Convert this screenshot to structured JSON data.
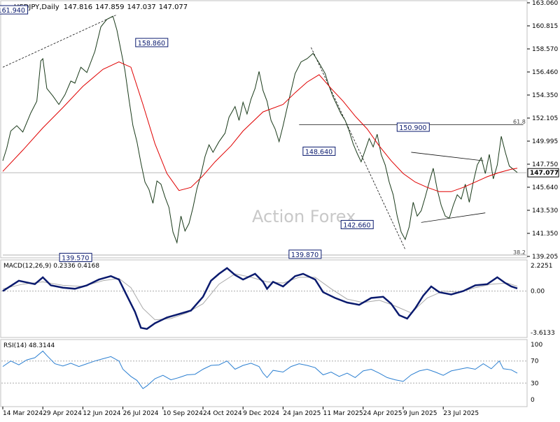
{
  "chart_data": {
    "type": "line",
    "title": "USDJPY,Daily",
    "ohlc": {
      "open": "147.816",
      "high": "147.859",
      "low": "147.037",
      "close": "147.077"
    },
    "watermark": "Action Forex",
    "colors": {
      "price": "#1a3a1a",
      "ma": "#e00000",
      "macd": "#0a1a6e",
      "signal": "#aaaaaa",
      "rsi": "#2b7fd1",
      "annotation_box": "#0a1a6e"
    },
    "x_ticks": [
      "14 Mar 2024",
      "29 Apr 2024",
      "12 Jun 2024",
      "26 Jul 2024",
      "10 Sep 2024",
      "24 Oct 2024",
      "9 Dec 2024",
      "24 Jan 2025",
      "11 Mar 2025",
      "24 Apr 2025",
      "9 Jun 2025",
      "23 Jul 2025"
    ],
    "price_panel": {
      "ylim": [
        139.205,
        163.06
      ],
      "y_ticks": [
        "163.060",
        "160.815",
        "158.570",
        "156.460",
        "154.350",
        "152.105",
        "149.995",
        "147.750",
        "145.640",
        "143.530",
        "141.350",
        "139.205"
      ],
      "current_price": "147.077",
      "fib_labels": [
        {
          "label": "61.8",
          "value": 151.5
        },
        {
          "label": "38.2",
          "value": 139.205
        }
      ],
      "annotations": [
        {
          "label": "161.940",
          "x": 0.22,
          "value": 161.94
        },
        {
          "label": "139.570",
          "x": 1.82,
          "value": 139.57
        },
        {
          "label": "158.860",
          "x": 3.72,
          "value": 158.86
        },
        {
          "label": "139.870",
          "x": 7.55,
          "value": 139.87
        },
        {
          "label": "148.640",
          "x": 7.9,
          "value": 148.64
        },
        {
          "label": "142.660",
          "x": 8.85,
          "value": 142.66
        },
        {
          "label": "150.900",
          "x": 10.25,
          "value": 150.9
        }
      ],
      "price_series": [
        [
          0,
          148.2
        ],
        [
          0.1,
          149.4
        ],
        [
          0.2,
          151.0
        ],
        [
          0.35,
          151.5
        ],
        [
          0.5,
          150.9
        ],
        [
          0.7,
          152.7
        ],
        [
          0.85,
          153.8
        ],
        [
          0.95,
          157.6
        ],
        [
          1.0,
          157.8
        ],
        [
          1.1,
          155.0
        ],
        [
          1.25,
          154.3
        ],
        [
          1.4,
          153.5
        ],
        [
          1.55,
          154.4
        ],
        [
          1.7,
          155.7
        ],
        [
          1.8,
          155.5
        ],
        [
          1.95,
          157.0
        ],
        [
          2.1,
          156.5
        ],
        [
          2.3,
          158.5
        ],
        [
          2.45,
          160.8
        ],
        [
          2.6,
          161.5
        ],
        [
          2.75,
          161.8
        ],
        [
          2.85,
          160.5
        ],
        [
          2.95,
          158.6
        ],
        [
          3.05,
          156.7
        ],
        [
          3.15,
          154.0
        ],
        [
          3.25,
          151.5
        ],
        [
          3.35,
          150.0
        ],
        [
          3.45,
          148.0
        ],
        [
          3.55,
          146.2
        ],
        [
          3.65,
          145.5
        ],
        [
          3.75,
          144.2
        ],
        [
          3.85,
          146.3
        ],
        [
          3.95,
          146.0
        ],
        [
          4.05,
          144.8
        ],
        [
          4.15,
          143.8
        ],
        [
          4.25,
          141.5
        ],
        [
          4.35,
          140.5
        ],
        [
          4.45,
          143.0
        ],
        [
          4.55,
          141.6
        ],
        [
          4.65,
          142.3
        ],
        [
          4.75,
          143.8
        ],
        [
          4.85,
          145.6
        ],
        [
          4.95,
          146.9
        ],
        [
          5.05,
          148.6
        ],
        [
          5.15,
          149.7
        ],
        [
          5.25,
          149.0
        ],
        [
          5.4,
          150.0
        ],
        [
          5.55,
          150.8
        ],
        [
          5.65,
          152.3
        ],
        [
          5.8,
          153.3
        ],
        [
          5.9,
          152.0
        ],
        [
          6.0,
          153.7
        ],
        [
          6.1,
          152.6
        ],
        [
          6.2,
          154.0
        ],
        [
          6.3,
          155.0
        ],
        [
          6.4,
          156.6
        ],
        [
          6.5,
          154.8
        ],
        [
          6.6,
          153.8
        ],
        [
          6.7,
          152.0
        ],
        [
          6.8,
          151.2
        ],
        [
          6.9,
          150.0
        ],
        [
          7.0,
          151.5
        ],
        [
          7.15,
          154.0
        ],
        [
          7.3,
          156.4
        ],
        [
          7.45,
          157.5
        ],
        [
          7.6,
          157.8
        ],
        [
          7.75,
          158.3
        ],
        [
          7.9,
          157.4
        ],
        [
          8.05,
          156.4
        ],
        [
          8.15,
          155.2
        ],
        [
          8.25,
          154.2
        ],
        [
          8.35,
          153.4
        ],
        [
          8.45,
          152.6
        ],
        [
          8.55,
          152.0
        ],
        [
          8.65,
          151.0
        ],
        [
          8.75,
          149.8
        ],
        [
          8.85,
          148.9
        ],
        [
          8.95,
          148.1
        ],
        [
          9.05,
          149.2
        ],
        [
          9.15,
          150.3
        ],
        [
          9.25,
          149.5
        ],
        [
          9.35,
          150.7
        ],
        [
          9.45,
          148.8
        ],
        [
          9.55,
          147.8
        ],
        [
          9.65,
          146.2
        ],
        [
          9.75,
          145.0
        ],
        [
          9.85,
          143.0
        ],
        [
          9.95,
          141.5
        ],
        [
          10.05,
          140.8
        ],
        [
          10.15,
          142.0
        ],
        [
          10.25,
          144.3
        ],
        [
          10.35,
          143.0
        ],
        [
          10.45,
          143.5
        ],
        [
          10.55,
          144.8
        ],
        [
          10.65,
          146.2
        ],
        [
          10.75,
          147.5
        ],
        [
          10.85,
          145.5
        ],
        [
          10.95,
          144.0
        ],
        [
          11.05,
          143.0
        ],
        [
          11.15,
          142.8
        ],
        [
          11.25,
          144.0
        ],
        [
          11.35,
          145.0
        ],
        [
          11.45,
          144.6
        ],
        [
          11.55,
          146.0
        ],
        [
          11.65,
          144.3
        ],
        [
          11.75,
          146.2
        ],
        [
          11.85,
          147.8
        ],
        [
          11.95,
          148.5
        ],
        [
          12.05,
          147.0
        ],
        [
          12.15,
          148.8
        ],
        [
          12.25,
          146.5
        ],
        [
          12.35,
          147.8
        ],
        [
          12.45,
          150.5
        ],
        [
          12.55,
          149.0
        ],
        [
          12.65,
          147.7
        ],
        [
          12.75,
          147.4
        ],
        [
          12.85,
          147.1
        ]
      ],
      "ma_series": [
        [
          0,
          147.2
        ],
        [
          0.5,
          149.2
        ],
        [
          1.0,
          151.3
        ],
        [
          1.5,
          153.2
        ],
        [
          2.0,
          155.2
        ],
        [
          2.5,
          156.8
        ],
        [
          2.9,
          157.5
        ],
        [
          3.2,
          157.0
        ],
        [
          3.5,
          153.5
        ],
        [
          3.8,
          149.8
        ],
        [
          4.1,
          147.0
        ],
        [
          4.4,
          145.4
        ],
        [
          4.7,
          145.7
        ],
        [
          5.0,
          146.8
        ],
        [
          5.3,
          148.1
        ],
        [
          5.7,
          149.6
        ],
        [
          6.0,
          151.0
        ],
        [
          6.5,
          152.8
        ],
        [
          7.0,
          153.5
        ],
        [
          7.3,
          154.6
        ],
        [
          7.6,
          155.6
        ],
        [
          7.9,
          156.3
        ],
        [
          8.2,
          155.0
        ],
        [
          8.5,
          153.8
        ],
        [
          8.8,
          152.4
        ],
        [
          9.1,
          151.2
        ],
        [
          9.4,
          149.6
        ],
        [
          9.7,
          148.2
        ],
        [
          10.0,
          147.0
        ],
        [
          10.3,
          146.2
        ],
        [
          10.6,
          145.7
        ],
        [
          10.9,
          145.3
        ],
        [
          11.2,
          145.3
        ],
        [
          11.5,
          145.7
        ],
        [
          11.8,
          146.2
        ],
        [
          12.1,
          146.7
        ],
        [
          12.4,
          147.1
        ],
        [
          12.7,
          147.4
        ],
        [
          12.85,
          147.5
        ]
      ],
      "trendlines": [
        {
          "from": [
            0.0,
            157.0
          ],
          "to": [
            2.85,
            161.94
          ]
        },
        {
          "from": [
            7.7,
            158.86
          ],
          "to": [
            10.05,
            139.87
          ]
        },
        {
          "from": [
            10.2,
            149.0
          ],
          "to": [
            12.0,
            148.2
          ]
        },
        {
          "from": [
            10.45,
            142.4
          ],
          "to": [
            12.05,
            143.3
          ]
        },
        {
          "from": [
            7.4,
            151.6
          ],
          "to": [
            13.0,
            151.6
          ]
        }
      ]
    },
    "macd_panel": {
      "label": "MACD(12,26,9) 0.2336 0.4168",
      "ylim": [
        -3.6133,
        2.2251
      ],
      "y_ticks": [
        "2.2251",
        "0.00",
        "-3.6133"
      ],
      "macd_series": [
        [
          0,
          0.0
        ],
        [
          0.4,
          0.9
        ],
        [
          0.8,
          0.6
        ],
        [
          1.0,
          1.2
        ],
        [
          1.2,
          0.5
        ],
        [
          1.5,
          0.3
        ],
        [
          1.8,
          0.2
        ],
        [
          2.1,
          0.5
        ],
        [
          2.4,
          1.0
        ],
        [
          2.7,
          1.3
        ],
        [
          2.9,
          1.0
        ],
        [
          3.1,
          -0.4
        ],
        [
          3.3,
          -1.8
        ],
        [
          3.45,
          -3.2
        ],
        [
          3.6,
          -3.3
        ],
        [
          3.8,
          -2.8
        ],
        [
          4.1,
          -2.3
        ],
        [
          4.4,
          -2.0
        ],
        [
          4.7,
          -1.7
        ],
        [
          5.0,
          -0.5
        ],
        [
          5.2,
          0.9
        ],
        [
          5.4,
          1.5
        ],
        [
          5.6,
          2.0
        ],
        [
          5.8,
          1.4
        ],
        [
          6.0,
          1.0
        ],
        [
          6.3,
          1.5
        ],
        [
          6.5,
          0.8
        ],
        [
          6.6,
          0.2
        ],
        [
          6.75,
          0.8
        ],
        [
          7.0,
          0.4
        ],
        [
          7.3,
          1.3
        ],
        [
          7.5,
          1.5
        ],
        [
          7.8,
          1.0
        ],
        [
          8.0,
          -0.1
        ],
        [
          8.3,
          -0.6
        ],
        [
          8.6,
          -1.0
        ],
        [
          8.9,
          -1.2
        ],
        [
          9.2,
          -0.6
        ],
        [
          9.5,
          -0.5
        ],
        [
          9.7,
          -1.1
        ],
        [
          9.9,
          -2.1
        ],
        [
          10.1,
          -2.4
        ],
        [
          10.3,
          -1.5
        ],
        [
          10.5,
          -0.4
        ],
        [
          10.7,
          0.4
        ],
        [
          10.9,
          -0.1
        ],
        [
          11.2,
          -0.3
        ],
        [
          11.5,
          0.0
        ],
        [
          11.8,
          0.5
        ],
        [
          12.1,
          0.6
        ],
        [
          12.35,
          1.2
        ],
        [
          12.55,
          0.7
        ],
        [
          12.7,
          0.4
        ],
        [
          12.85,
          0.23
        ]
      ],
      "signal_series": [
        [
          0,
          0.2
        ],
        [
          0.5,
          0.6
        ],
        [
          1.0,
          0.8
        ],
        [
          1.5,
          0.5
        ],
        [
          2.0,
          0.4
        ],
        [
          2.5,
          0.9
        ],
        [
          2.9,
          1.1
        ],
        [
          3.2,
          0.3
        ],
        [
          3.5,
          -1.5
        ],
        [
          3.8,
          -2.5
        ],
        [
          4.2,
          -2.4
        ],
        [
          4.6,
          -1.9
        ],
        [
          5.0,
          -1.1
        ],
        [
          5.4,
          0.6
        ],
        [
          5.8,
          1.5
        ],
        [
          6.2,
          1.2
        ],
        [
          6.6,
          0.8
        ],
        [
          7.0,
          0.7
        ],
        [
          7.4,
          1.2
        ],
        [
          7.8,
          1.2
        ],
        [
          8.2,
          0.2
        ],
        [
          8.6,
          -0.7
        ],
        [
          9.0,
          -1.0
        ],
        [
          9.4,
          -0.8
        ],
        [
          9.8,
          -1.3
        ],
        [
          10.2,
          -1.9
        ],
        [
          10.6,
          -0.6
        ],
        [
          11.0,
          0.0
        ],
        [
          11.4,
          -0.1
        ],
        [
          11.8,
          0.3
        ],
        [
          12.2,
          0.6
        ],
        [
          12.6,
          0.7
        ],
        [
          12.85,
          0.42
        ]
      ]
    },
    "rsi_panel": {
      "label": "RSI(14) 48.3144",
      "ylim": [
        0,
        100
      ],
      "y_ticks": [
        "100",
        "70",
        "30",
        "0"
      ],
      "levels": [
        70,
        30
      ],
      "rsi_series": [
        [
          0,
          60
        ],
        [
          0.2,
          70
        ],
        [
          0.4,
          63
        ],
        [
          0.6,
          72
        ],
        [
          0.8,
          76
        ],
        [
          1.0,
          88
        ],
        [
          1.1,
          80
        ],
        [
          1.3,
          65
        ],
        [
          1.5,
          61
        ],
        [
          1.7,
          66
        ],
        [
          1.9,
          60
        ],
        [
          2.1,
          65
        ],
        [
          2.3,
          70
        ],
        [
          2.5,
          74
        ],
        [
          2.7,
          78
        ],
        [
          2.9,
          70
        ],
        [
          3.0,
          55
        ],
        [
          3.2,
          42
        ],
        [
          3.35,
          35
        ],
        [
          3.5,
          20
        ],
        [
          3.6,
          25
        ],
        [
          3.8,
          38
        ],
        [
          4.0,
          44
        ],
        [
          4.2,
          36
        ],
        [
          4.4,
          40
        ],
        [
          4.6,
          45
        ],
        [
          4.8,
          46
        ],
        [
          5.0,
          55
        ],
        [
          5.2,
          62
        ],
        [
          5.4,
          63
        ],
        [
          5.6,
          70
        ],
        [
          5.8,
          55
        ],
        [
          6.0,
          62
        ],
        [
          6.2,
          66
        ],
        [
          6.4,
          60
        ],
        [
          6.5,
          48
        ],
        [
          6.6,
          40
        ],
        [
          6.75,
          53
        ],
        [
          7.0,
          50
        ],
        [
          7.2,
          60
        ],
        [
          7.4,
          65
        ],
        [
          7.6,
          62
        ],
        [
          7.8,
          58
        ],
        [
          8.0,
          45
        ],
        [
          8.2,
          50
        ],
        [
          8.4,
          42
        ],
        [
          8.6,
          48
        ],
        [
          8.8,
          40
        ],
        [
          9.0,
          52
        ],
        [
          9.2,
          55
        ],
        [
          9.4,
          48
        ],
        [
          9.6,
          40
        ],
        [
          9.8,
          36
        ],
        [
          10.0,
          33
        ],
        [
          10.2,
          45
        ],
        [
          10.4,
          52
        ],
        [
          10.6,
          55
        ],
        [
          10.8,
          50
        ],
        [
          11.0,
          44
        ],
        [
          11.2,
          52
        ],
        [
          11.4,
          55
        ],
        [
          11.6,
          58
        ],
        [
          11.8,
          55
        ],
        [
          12.0,
          65
        ],
        [
          12.2,
          56
        ],
        [
          12.4,
          70
        ],
        [
          12.5,
          56
        ],
        [
          12.7,
          54
        ],
        [
          12.85,
          48
        ]
      ]
    }
  }
}
